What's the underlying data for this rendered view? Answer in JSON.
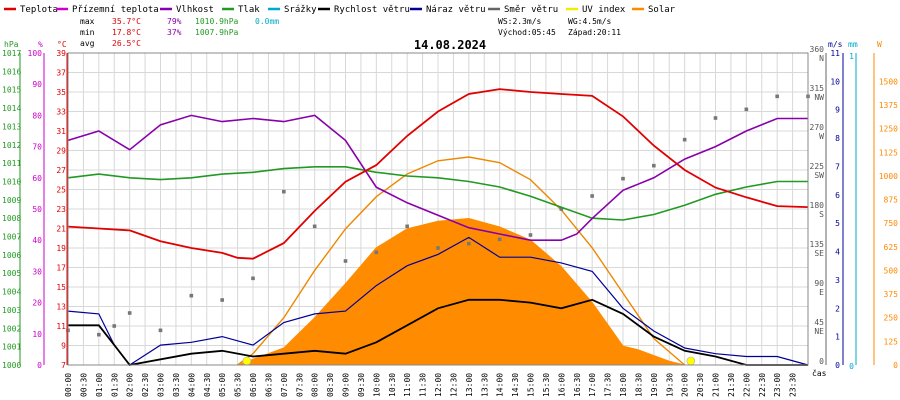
{
  "chart_data": {
    "type": "line",
    "title": "14.08.2024",
    "legend": [
      {
        "label": "Teplota",
        "color": "#e00000"
      },
      {
        "label": "Přízemní teplota",
        "color": "#cc00cc"
      },
      {
        "label": "Vlhkost",
        "color": "#8800aa"
      },
      {
        "label": "Tlak",
        "color": "#229922"
      },
      {
        "label": "Srážky",
        "color": "#00aacc"
      },
      {
        "label": "Rychlost větru",
        "color": "#000000"
      },
      {
        "label": "Náraz větru",
        "color": "#000099"
      },
      {
        "label": "Směr větru",
        "color": "#666666"
      },
      {
        "label": "UV index",
        "color": "#eeee00"
      },
      {
        "label": "Solar",
        "color": "#ff8800"
      }
    ],
    "stats": {
      "max_line": [
        "max",
        "35.7°C",
        "79%",
        "1010.9hPa",
        "0.0mm"
      ],
      "min_line": [
        "min",
        "17.8°C",
        "37%",
        "1007.9hPa"
      ],
      "avg_line": [
        "avg",
        "26.5°C"
      ],
      "ws": "WS:2.3m/s",
      "wg": "WG:4.5m/s",
      "sunrise": "Východ:05:45",
      "sunset": "Západ:20:11"
    },
    "axis_units": {
      "pressure": "hPa",
      "humidity": "%",
      "temp": "°C",
      "wind": "m/s",
      "rain": "mm",
      "solar": "W"
    },
    "axes": {
      "pressure_ticks": [
        "1017",
        "1016",
        "1015",
        "1014",
        "1013",
        "1012",
        "1011",
        "1010",
        "1009",
        "1008",
        "1007",
        "1006",
        "1005",
        "1004",
        "1003",
        "1002",
        "1001",
        "1000"
      ],
      "humidity_ticks": [
        "100",
        "90",
        "80",
        "70",
        "60",
        "50",
        "40",
        "30",
        "20",
        "10",
        "0"
      ],
      "temp_ticks": [
        "39",
        "37",
        "35",
        "33",
        "31",
        "29",
        "27",
        "25",
        "23",
        "21",
        "19",
        "17",
        "15",
        "13",
        "11",
        "9",
        "7"
      ],
      "dir_ticks": [
        {
          "v": 360,
          "t": "360"
        },
        {
          "v": 360,
          "t": "N"
        },
        {
          "v": 315,
          "t": "315"
        },
        {
          "v": 315,
          "t": "NW"
        },
        {
          "v": 270,
          "t": "270"
        },
        {
          "v": 270,
          "t": "W"
        },
        {
          "v": 225,
          "t": "225"
        },
        {
          "v": 225,
          "t": "SW"
        },
        {
          "v": 180,
          "t": "180"
        },
        {
          "v": 180,
          "t": "S"
        },
        {
          "v": 135,
          "t": "135"
        },
        {
          "v": 135,
          "t": "SE"
        },
        {
          "v": 90,
          "t": "90"
        },
        {
          "v": 90,
          "t": "E"
        },
        {
          "v": 45,
          "t": "45"
        },
        {
          "v": 45,
          "t": "NE"
        },
        {
          "v": 0,
          "t": "0"
        }
      ],
      "wind_ticks": [
        "11",
        "10",
        "9",
        "8",
        "7",
        "6",
        "5",
        "4",
        "3",
        "2",
        "1",
        "0"
      ],
      "rain_ticks": [
        "1",
        "0"
      ],
      "solar_ticks": [
        "1500",
        "1375",
        "1250",
        "1125",
        "1000",
        "875",
        "750",
        "625",
        "500",
        "375",
        "250",
        "125",
        "0"
      ],
      "time_ticks": [
        "00:00",
        "00:30",
        "01:00",
        "01:30",
        "02:00",
        "02:30",
        "03:00",
        "03:30",
        "04:00",
        "04:30",
        "05:00",
        "05:30",
        "06:00",
        "06:30",
        "07:00",
        "07:30",
        "08:00",
        "08:30",
        "09:00",
        "09:30",
        "10:00",
        "10:30",
        "11:00",
        "11:30",
        "12:00",
        "12:30",
        "13:00",
        "13:30",
        "14:00",
        "14:30",
        "15:00",
        "15:30",
        "16:00",
        "16:30",
        "17:00",
        "17:30",
        "18:00",
        "18:30",
        "19:00",
        "19:30",
        "20:00",
        "20:30",
        "21:00",
        "21:30",
        "22:00",
        "22:30",
        "23:00",
        "23:30"
      ],
      "xlabel": "čas"
    },
    "series": {
      "temperature_c": {
        "x": [
          0,
          1,
          2,
          3,
          4,
          5,
          5.5,
          6,
          7,
          8,
          9,
          10,
          11,
          12,
          13,
          14,
          15,
          16,
          17,
          18,
          19,
          20,
          21,
          22,
          23,
          24
        ],
        "y": [
          21.2,
          21.0,
          20.8,
          19.7,
          19.0,
          18.5,
          18.0,
          17.9,
          19.5,
          22.8,
          25.8,
          27.5,
          30.5,
          33.0,
          34.8,
          35.3,
          35.0,
          34.8,
          34.6,
          32.5,
          29.5,
          27.0,
          25.2,
          24.2,
          23.3,
          23.2
        ]
      },
      "humidity_pct": {
        "x": [
          0,
          1,
          2,
          3,
          4,
          5,
          6,
          7,
          8,
          9,
          10,
          11,
          12,
          13,
          14,
          15,
          16,
          16.5,
          17,
          18,
          19,
          20,
          21,
          22,
          23,
          24
        ],
        "y": [
          72,
          75,
          69,
          77,
          80,
          78,
          79,
          78,
          80,
          72,
          57,
          52,
          48,
          44,
          42,
          40,
          40,
          42,
          47,
          56,
          60,
          66,
          70,
          75,
          79,
          79
        ]
      },
      "pressure_hpa": {
        "x": [
          0,
          1,
          2,
          3,
          4,
          5,
          6,
          7,
          8,
          9,
          10,
          11,
          12,
          13,
          14,
          15,
          16,
          17,
          18,
          19,
          20,
          21,
          22,
          23,
          24
        ],
        "y": [
          1010.2,
          1010.4,
          1010.2,
          1010.1,
          1010.2,
          1010.4,
          1010.5,
          1010.7,
          1010.8,
          1010.8,
          1010.5,
          1010.3,
          1010.2,
          1010.0,
          1009.7,
          1009.2,
          1008.6,
          1008.0,
          1007.9,
          1008.2,
          1008.7,
          1009.3,
          1009.7,
          1010.0,
          1010.0
        ]
      },
      "wind_speed_ms": {
        "x": [
          0,
          1,
          1.5,
          2,
          4,
          5,
          6,
          7,
          8,
          9,
          10,
          11,
          12,
          13,
          14,
          15,
          16,
          17,
          18,
          19,
          20,
          21,
          22,
          23,
          24
        ],
        "y": [
          1.4,
          1.4,
          0.7,
          0.0,
          0.4,
          0.5,
          0.3,
          0.4,
          0.5,
          0.4,
          0.8,
          1.4,
          2.0,
          2.3,
          2.3,
          2.2,
          2.0,
          2.3,
          1.8,
          1.0,
          0.5,
          0.3,
          0.0,
          0.0,
          0.0
        ]
      },
      "wind_gust_ms": {
        "x": [
          0,
          1,
          1.5,
          2,
          3,
          4,
          5,
          6,
          7,
          8,
          9,
          10,
          11,
          12,
          13,
          14,
          15,
          16,
          17,
          18,
          19,
          20,
          21,
          22,
          23,
          24
        ],
        "y": [
          1.9,
          1.8,
          0.7,
          0.0,
          0.7,
          0.8,
          1.0,
          0.7,
          1.5,
          1.8,
          1.9,
          2.8,
          3.5,
          3.9,
          4.5,
          3.8,
          3.8,
          3.6,
          3.3,
          2.0,
          1.2,
          0.6,
          0.4,
          0.3,
          0.3,
          0.0
        ]
      },
      "wind_dir_deg": {
        "x": [
          0,
          1,
          1.5,
          2,
          3,
          4,
          5,
          6,
          7,
          8,
          9,
          10,
          11,
          12,
          13,
          14,
          15,
          16,
          17,
          18,
          19,
          20,
          21,
          22,
          23,
          24
        ],
        "y": [
          40,
          35,
          45,
          60,
          40,
          80,
          75,
          100,
          200,
          160,
          120,
          130,
          160,
          135,
          140,
          145,
          150,
          180,
          195,
          215,
          230,
          260,
          285,
          295,
          310,
          310
        ]
      },
      "solar_wm2": {
        "x": [
          5.5,
          6,
          7,
          8,
          9,
          10,
          11,
          12,
          13,
          14,
          15,
          16,
          17,
          18,
          18.5,
          19,
          19.5,
          20
        ],
        "y": [
          0,
          30,
          90,
          250,
          430,
          620,
          720,
          760,
          775,
          730,
          660,
          520,
          330,
          100,
          80,
          50,
          20,
          0
        ]
      },
      "solar_clear_wm2": {
        "x": [
          5.5,
          6,
          7,
          8,
          9,
          10,
          11,
          12,
          13,
          14,
          15,
          16,
          17,
          18,
          19,
          20
        ],
        "y": [
          0,
          60,
          250,
          500,
          720,
          890,
          1010,
          1080,
          1100,
          1070,
          980,
          820,
          620,
          380,
          140,
          0
        ]
      },
      "uv_index": {
        "x": [
          5.8,
          20.2
        ],
        "y": [
          0,
          0
        ]
      }
    }
  }
}
